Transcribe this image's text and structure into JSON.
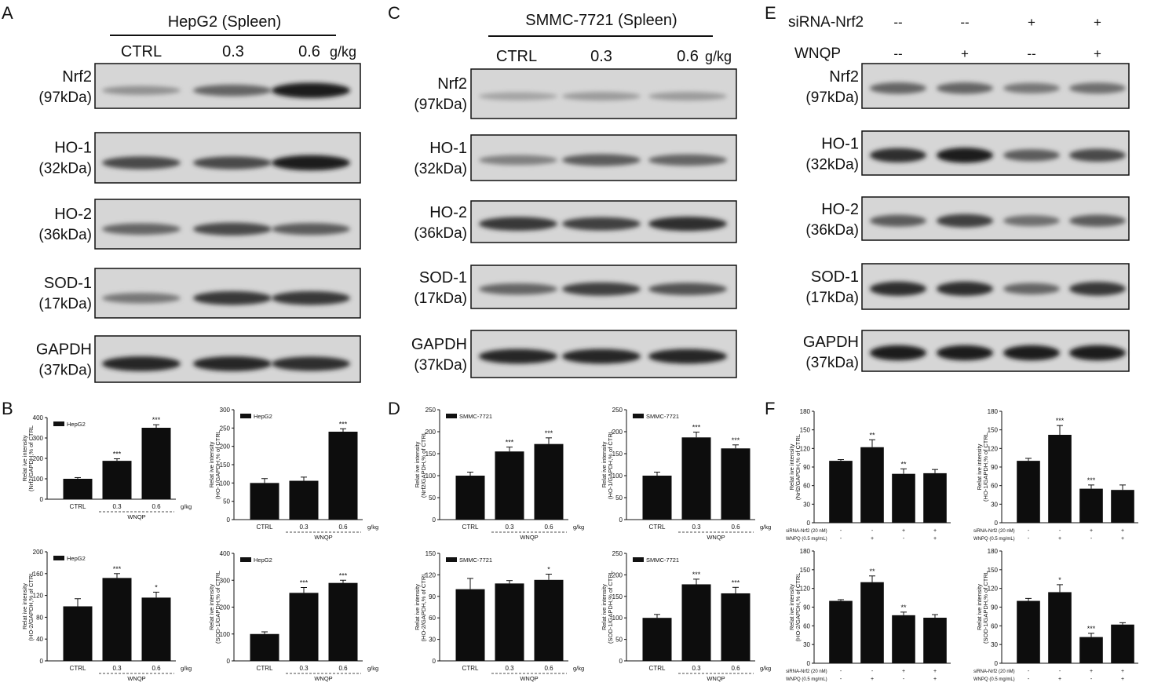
{
  "panel_letters": [
    "A",
    "B",
    "C",
    "D",
    "E",
    "F"
  ],
  "blots": [
    {
      "id": "A",
      "title": "HepG2 (Spleen)",
      "lanes": [
        "CTRL",
        "0.3",
        "0.6"
      ],
      "unit": "g/kg",
      "bands": [
        {
          "name": "Nrf2",
          "kda": "(97kDa)",
          "intensity": [
            0.3,
            0.55,
            0.95
          ]
        },
        {
          "name": "HO-1",
          "kda": "(32kDa)",
          "intensity": [
            0.7,
            0.7,
            0.95
          ]
        },
        {
          "name": "HO-2",
          "kda": "(36kDa)",
          "intensity": [
            0.55,
            0.7,
            0.6
          ]
        },
        {
          "name": "SOD-1",
          "kda": "(17kDa)",
          "intensity": [
            0.45,
            0.8,
            0.8
          ]
        },
        {
          "name": "GAPDH",
          "kda": "(37kDa)",
          "intensity": [
            0.9,
            0.9,
            0.85
          ]
        }
      ]
    },
    {
      "id": "C",
      "title": "SMMC-7721 (Spleen)",
      "lanes": [
        "CTRL",
        "0.3",
        "0.6"
      ],
      "unit": "g/kg",
      "bands": [
        {
          "name": "Nrf2",
          "kda": "(97kDa)",
          "intensity": [
            0.2,
            0.25,
            0.25
          ]
        },
        {
          "name": "HO-1",
          "kda": "(32kDa)",
          "intensity": [
            0.4,
            0.6,
            0.55
          ]
        },
        {
          "name": "HO-2",
          "kda": "(36kDa)",
          "intensity": [
            0.8,
            0.75,
            0.85
          ]
        },
        {
          "name": "SOD-1",
          "kda": "(17kDa)",
          "intensity": [
            0.55,
            0.75,
            0.65
          ]
        },
        {
          "name": "GAPDH",
          "kda": "(37kDa)",
          "intensity": [
            0.9,
            0.9,
            0.9
          ]
        }
      ]
    },
    {
      "id": "E",
      "treatments": [
        {
          "label": "siRNA-Nrf2",
          "signs": [
            "--",
            "--",
            "+",
            "+"
          ]
        },
        {
          "label": "WNQP",
          "signs": [
            "--",
            "+",
            "--",
            "+"
          ]
        }
      ],
      "bands": [
        {
          "name": "Nrf2",
          "kda": "(97kDa)",
          "intensity": [
            0.55,
            0.55,
            0.45,
            0.5
          ]
        },
        {
          "name": "HO-1",
          "kda": "(32kDa)",
          "intensity": [
            0.85,
            0.95,
            0.6,
            0.7
          ]
        },
        {
          "name": "HO-2",
          "kda": "(36kDa)",
          "intensity": [
            0.6,
            0.75,
            0.5,
            0.6
          ]
        },
        {
          "name": "SOD-1",
          "kda": "(17kDa)",
          "intensity": [
            0.85,
            0.85,
            0.55,
            0.8
          ]
        },
        {
          "name": "GAPDH",
          "kda": "(37kDa)",
          "intensity": [
            0.95,
            0.95,
            0.95,
            0.95
          ]
        }
      ]
    }
  ],
  "chart_data": [
    {
      "panel": "B",
      "type": "bar",
      "legend": "HepG2",
      "ylabel": [
        "Relat ive intensity",
        "(Nrf2/GAPDH,% of CTRL"
      ],
      "ylim": [
        0,
        400
      ],
      "yticks": [
        0,
        100,
        200,
        300,
        400
      ],
      "categories": [
        "CTRL",
        "0.3",
        "0.6"
      ],
      "values": [
        100,
        188,
        350
      ],
      "errors": [
        6,
        10,
        15
      ],
      "sig": [
        "",
        "***",
        "***"
      ],
      "group": "WNQP",
      "unit": "g/kg"
    },
    {
      "panel": "B",
      "type": "bar",
      "legend": "HepG2",
      "ylabel": [
        "Relat ive intensity",
        "(HO-1/GAPDH,% of CTRL"
      ],
      "ylim": [
        0,
        300
      ],
      "yticks": [
        0,
        50,
        100,
        150,
        200,
        250,
        300
      ],
      "categories": [
        "CTRL",
        "0.3",
        "0.6"
      ],
      "values": [
        100,
        106,
        240
      ],
      "errors": [
        12,
        10,
        8
      ],
      "sig": [
        "",
        "",
        "***"
      ],
      "group": "WNQP",
      "unit": "g/kg"
    },
    {
      "panel": "B",
      "type": "bar",
      "legend": "HepG2",
      "ylabel": [
        "Relat ive intensity",
        "(HO-2/GAPDH,% of CTRL"
      ],
      "ylim": [
        0,
        200
      ],
      "yticks": [
        0,
        40,
        80,
        120,
        160,
        200
      ],
      "categories": [
        "CTRL",
        "0.3",
        "0.6"
      ],
      "values": [
        100,
        152,
        116
      ],
      "errors": [
        14,
        8,
        10
      ],
      "sig": [
        "",
        "***",
        "*"
      ],
      "group": "WNQP",
      "unit": "g/kg"
    },
    {
      "panel": "B",
      "type": "bar",
      "legend": "HepG2",
      "ylabel": [
        "Relat ive intensity",
        "(SOD-1/GAPDH,% of CTRL"
      ],
      "ylim": [
        0,
        400
      ],
      "yticks": [
        0,
        100,
        200,
        300,
        400
      ],
      "categories": [
        "CTRL",
        "0.3",
        "0.6"
      ],
      "values": [
        100,
        253,
        290
      ],
      "errors": [
        8,
        20,
        10
      ],
      "sig": [
        "",
        "***",
        "***"
      ],
      "group": "WNQP",
      "unit": "g/kg"
    },
    {
      "panel": "D",
      "type": "bar",
      "legend": "SMMC-7721",
      "ylabel": [
        "Relat ive intensity",
        "(Nrf2/GAPDH,% of CTRL"
      ],
      "ylim": [
        0,
        250
      ],
      "yticks": [
        0,
        50,
        100,
        150,
        200,
        250
      ],
      "categories": [
        "CTRL",
        "0.3",
        "0.6"
      ],
      "values": [
        100,
        155,
        172
      ],
      "errors": [
        8,
        10,
        14
      ],
      "sig": [
        "",
        "***",
        "***"
      ],
      "group": "WNQP",
      "unit": "g/kg"
    },
    {
      "panel": "D",
      "type": "bar",
      "legend": "SMMC-7721",
      "ylabel": [
        "Relat ive intensity",
        "(HO-1/GAPDH,% of CTRL"
      ],
      "ylim": [
        0,
        250
      ],
      "yticks": [
        0,
        50,
        100,
        150,
        200,
        250
      ],
      "categories": [
        "CTRL",
        "0.3",
        "0.6"
      ],
      "values": [
        100,
        187,
        162
      ],
      "errors": [
        8,
        12,
        8
      ],
      "sig": [
        "",
        "***",
        "***"
      ],
      "group": "WNQP",
      "unit": "g/kg"
    },
    {
      "panel": "D",
      "type": "bar",
      "legend": "SMMC-7721",
      "ylabel": [
        "Relat ive intensity",
        "(HO-2/GAPDH,% of CTRL"
      ],
      "ylim": [
        0,
        150
      ],
      "yticks": [
        0,
        30,
        60,
        90,
        120,
        150
      ],
      "categories": [
        "CTRL",
        "0.3",
        "0.6"
      ],
      "values": [
        100,
        108,
        113
      ],
      "errors": [
        15,
        4,
        8
      ],
      "sig": [
        "",
        "",
        "*"
      ],
      "group": "WNQP",
      "unit": "g/kg"
    },
    {
      "panel": "D",
      "type": "bar",
      "legend": "SMMC-7721",
      "ylabel": [
        "Relat ive intensity",
        "(SOD-1/GAPDH,% of CTRL"
      ],
      "ylim": [
        0,
        250
      ],
      "yticks": [
        0,
        50,
        100,
        150,
        200,
        250
      ],
      "categories": [
        "CTRL",
        "0.3",
        "0.6"
      ],
      "values": [
        100,
        178,
        157
      ],
      "errors": [
        8,
        12,
        14
      ],
      "sig": [
        "",
        "***",
        "***"
      ],
      "group": "WNQP",
      "unit": "g/kg"
    },
    {
      "panel": "F",
      "type": "bar",
      "ylabel": [
        "Relat ive intensity",
        "(Nrf2/GAPDH,% of CTRL"
      ],
      "ylim": [
        0,
        180
      ],
      "yticks": [
        0,
        30,
        60,
        90,
        120,
        150,
        180
      ],
      "values": [
        100,
        122,
        79,
        80
      ],
      "errors": [
        2,
        12,
        8,
        6
      ],
      "sig": [
        "",
        "**",
        "**",
        ""
      ],
      "treat_labels": [
        "siRNA-Nrf2 (20 nM)",
        "WNPQ (0.5 mg/mL)"
      ],
      "treat_signs": [
        [
          "-",
          "-",
          "+",
          "+"
        ],
        [
          "-",
          "+",
          "-",
          "+"
        ]
      ]
    },
    {
      "panel": "F",
      "type": "bar",
      "ylabel": [
        "Relat ive intensity",
        "(HO-1/GAPDH,% of CTRL"
      ],
      "ylim": [
        0,
        180
      ],
      "yticks": [
        0,
        30,
        60,
        90,
        120,
        150,
        180
      ],
      "values": [
        100,
        142,
        55,
        53
      ],
      "errors": [
        4,
        15,
        6,
        8
      ],
      "sig": [
        "",
        "***",
        "***",
        ""
      ],
      "treat_labels": [
        "siRNA-Nrf2 (20 nM)",
        "WNPQ (0.5 mg/mL)"
      ],
      "treat_signs": [
        [
          "-",
          "-",
          "+",
          "+"
        ],
        [
          "-",
          "+",
          "-",
          "+"
        ]
      ]
    },
    {
      "panel": "F",
      "type": "bar",
      "ylabel": [
        "Relat ive intensity",
        "(HO-2/GAPDH,% of CTRL"
      ],
      "ylim": [
        0,
        180
      ],
      "yticks": [
        0,
        30,
        60,
        90,
        120,
        150,
        180
      ],
      "values": [
        100,
        130,
        77,
        73
      ],
      "errors": [
        2,
        10,
        5,
        5
      ],
      "sig": [
        "",
        "**",
        "**",
        ""
      ],
      "treat_labels": [
        "siRNA-Nrf2 (20 nM)",
        "WNPQ (0.5 mg/mL)"
      ],
      "treat_signs": [
        [
          "-",
          "-",
          "+",
          "+"
        ],
        [
          "-",
          "+",
          "-",
          "+"
        ]
      ]
    },
    {
      "panel": "F",
      "type": "bar",
      "ylabel": [
        "Relat ive intensity",
        "(SOD-1/GAPDH,% of CTRL"
      ],
      "ylim": [
        0,
        180
      ],
      "yticks": [
        0,
        30,
        60,
        90,
        120,
        150,
        180
      ],
      "values": [
        100,
        114,
        42,
        62
      ],
      "errors": [
        4,
        12,
        6,
        3
      ],
      "sig": [
        "",
        "*",
        "***",
        ""
      ],
      "treat_labels": [
        "siRNA-Nrf2 (20 nM)",
        "WNPQ (0.5 mg/mL)"
      ],
      "treat_signs": [
        [
          "-",
          "-",
          "+",
          "+"
        ],
        [
          "-",
          "+",
          "-",
          "+"
        ]
      ]
    }
  ]
}
